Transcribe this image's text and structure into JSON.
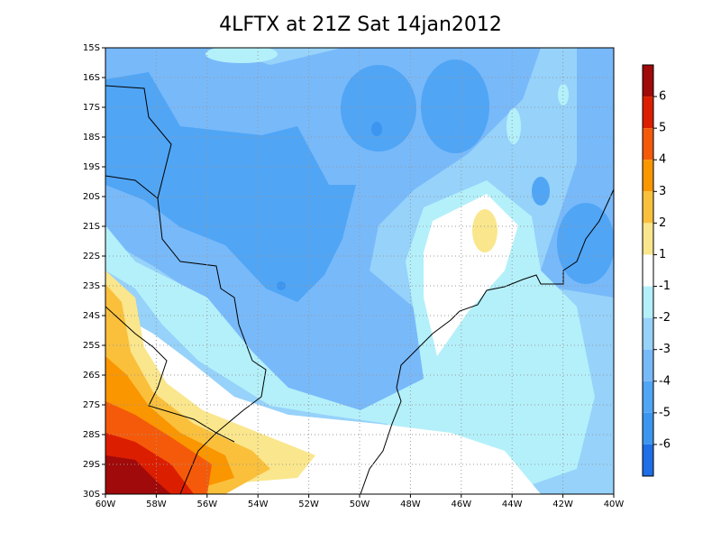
{
  "title": "4LFTX at 21Z Sat 14jan2012",
  "lat_labels": [
    "15S",
    "16S",
    "17S",
    "18S",
    "19S",
    "20S",
    "21S",
    "22S",
    "23S",
    "24S",
    "25S",
    "26S",
    "27S",
    "28S",
    "29S",
    "30S"
  ],
  "lon_labels": [
    "60W",
    "58W",
    "56W",
    "54W",
    "52W",
    "50W",
    "48W",
    "46W",
    "44W",
    "42W",
    "40W"
  ],
  "colorbar": {
    "labels": [
      "6",
      "5",
      "4",
      "3",
      "2",
      "1",
      "-1",
      "-2",
      "-3",
      "-4",
      "-5",
      "-6"
    ],
    "colors": [
      "#a00a0a",
      "#dc1e00",
      "#f55a0a",
      "#fa9600",
      "#fac03c",
      "#fae68c",
      "#ffffff",
      "#b4f0fa",
      "#96d2fa",
      "#78b9fa",
      "#50a5f5",
      "#3c96f0",
      "#1e6ee6"
    ]
  }
}
